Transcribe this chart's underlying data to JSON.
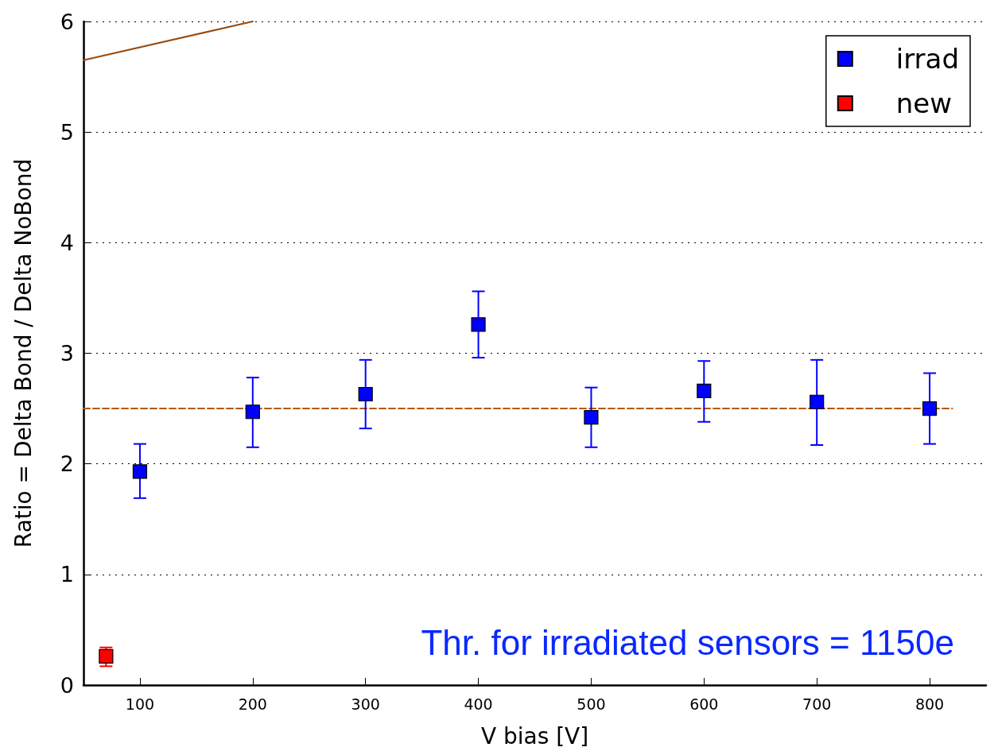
{
  "chart_data": {
    "type": "scatter",
    "xlabel": "V bias [V]",
    "ylabel": "Ratio = Delta Bond / Delta NoBond",
    "xlim": [
      50,
      850
    ],
    "xticks": [
      100,
      200,
      300,
      400,
      500,
      600,
      700,
      800
    ],
    "ylim": [
      0,
      6
    ],
    "yticks": [
      0,
      1,
      2,
      3,
      4,
      5,
      6
    ],
    "grid": "y",
    "legend": "top right",
    "marker": "square",
    "series": [
      {
        "name": "irrad",
        "color": "#0000ff",
        "x": [
          100,
          200,
          300,
          400,
          500,
          600,
          700,
          800
        ],
        "values": [
          1.93,
          2.47,
          2.63,
          3.26,
          2.42,
          2.66,
          2.56,
          2.5
        ],
        "errors": [
          [
            1.69,
            2.18
          ],
          [
            2.15,
            2.78
          ],
          [
            2.32,
            2.94
          ],
          [
            2.96,
            3.56
          ],
          [
            2.15,
            2.69
          ],
          [
            2.38,
            2.93
          ],
          [
            2.17,
            2.94
          ],
          [
            2.18,
            2.82
          ]
        ]
      },
      {
        "name": "new",
        "color": "#ff0000",
        "x": [
          70
        ],
        "values": [
          0.26
        ],
        "errors": [
          [
            0.17,
            0.34
          ]
        ]
      },
      {
        "type": "line",
        "color": "#b35900",
        "line_style": "dashed",
        "marker": "none",
        "x": [
          50,
          820
        ],
        "values": [
          2.5,
          2.5
        ]
      },
      {
        "type": "line",
        "color": "#9c4a0c",
        "line_style": "solid",
        "marker": "none",
        "x": [
          50,
          200
        ],
        "values": [
          5.65,
          6.0
        ]
      }
    ],
    "annotations": [
      "Thr. for irradiated sensors = 1150e"
    ]
  }
}
